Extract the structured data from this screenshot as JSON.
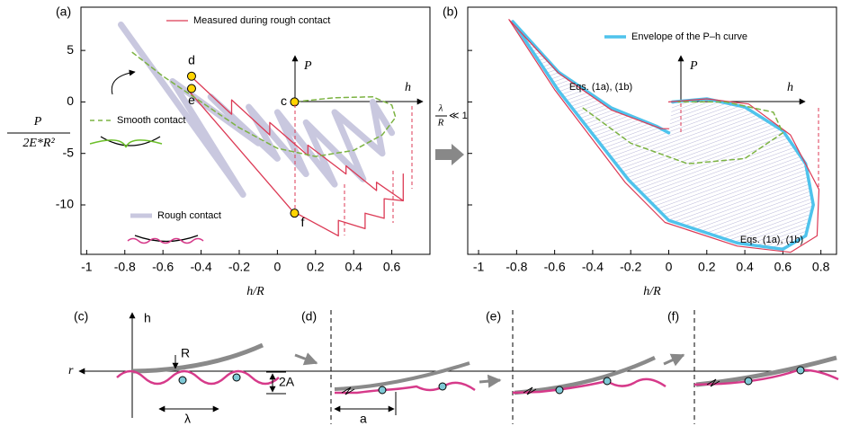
{
  "chart_data": [
    {
      "type": "line",
      "panel_label": "(a)",
      "x_label": "h/R",
      "y_label": {
        "numerator": "P",
        "denominator": "2E*R²"
      },
      "xlim": [
        -1.03,
        0.8
      ],
      "ylim": [
        -14.8,
        9.2
      ],
      "xticks": [
        -1,
        -0.8,
        -0.6,
        -0.4,
        -0.2,
        0,
        0.2,
        0.4,
        0.6
      ],
      "yticks": [
        5,
        0,
        -5,
        -10
      ],
      "inset_axes": {
        "y": "P",
        "x": "h"
      },
      "ratio_label": {
        "numerator": "λ",
        "denominator": "R",
        "relation": "≪ 1"
      },
      "series": [
        {
          "name": "Rough contact",
          "color": "#c9c8df",
          "width": 7,
          "x": [
            -0.82,
            -0.18,
            -0.55,
            -0.1,
            -0.35,
            0.0,
            -0.15,
            0.15,
            0.0,
            0.3,
            0.15,
            0.45,
            0.3,
            0.55,
            0.5,
            0.6
          ],
          "values": [
            7.5,
            -9,
            2,
            -4,
            0.5,
            -5.5,
            -0.5,
            -7,
            -1,
            -8,
            -2,
            -7.5,
            -1,
            -5,
            0,
            -3
          ]
        },
        {
          "name": "Measured during rough contact",
          "color": "#dc3a55",
          "width": 1.3,
          "x": [
            -0.46,
            -0.24,
            -0.24,
            -0.04,
            -0.04,
            0.16,
            0.16,
            0.36,
            0.36,
            0.52,
            0.52,
            0.66,
            0.66,
            null,
            -0.47,
            0.08,
            0.32,
            0.32,
            0.46,
            0.46,
            0.56,
            0.56,
            0.66
          ],
          "values": [
            2.6,
            -1.2,
            0.2,
            -3.2,
            -2.0,
            -5.2,
            -4.2,
            -7.0,
            -6.2,
            -8.6,
            -7.8,
            -9.6,
            -7,
            null,
            1.2,
            -10.6,
            -13.0,
            -11.5,
            -12.3,
            -10.8,
            -11.3,
            -9.4,
            -9.6
          ]
        },
        {
          "name": "Smooth contact",
          "color": "#7cb342",
          "width": 1.5,
          "dashed": true,
          "x": [
            -0.76,
            -0.6,
            -0.4,
            -0.2,
            0,
            0.2,
            0.4,
            0.55,
            0.62,
            0.6,
            0.5,
            0.3,
            0.08
          ],
          "values": [
            4.8,
            2.5,
            0,
            -2.5,
            -4.5,
            -5.3,
            -4.7,
            -3.2,
            -1.5,
            -0.3,
            0.5,
            0.4,
            0
          ]
        }
      ],
      "points": {
        "labels": [
          "d",
          "e",
          "c",
          "f"
        ],
        "x": [
          -0.45,
          -0.45,
          0.09,
          0.09
        ],
        "values": [
          2.5,
          1.3,
          0,
          -10.8
        ],
        "color": "#ffd400"
      }
    },
    {
      "type": "line",
      "panel_label": "(b)",
      "x_label": "h/R",
      "xlim": [
        -1.057,
        0.882
      ],
      "ylim": [
        -14.8,
        9.2
      ],
      "xticks": [
        -1,
        -0.8,
        -0.6,
        -0.4,
        -0.2,
        0,
        0.2,
        0.4,
        0.6,
        0.8
      ],
      "yticks": [
        5,
        0,
        -5,
        -10
      ],
      "ytick_labels": false,
      "inset_axes": {
        "y": "P",
        "x": "h"
      },
      "annotations": [
        "Eqs. (1a), (1b)",
        "Eqs. (1a), (1b)"
      ],
      "series": [
        {
          "name": "Envelope of the P–h curve",
          "color": "#4fc3ec",
          "width": 3.5,
          "hatch": "#b9b7d9",
          "x": [
            0.02,
            0.2,
            0.4,
            0.6,
            0.72,
            0.76,
            0.72,
            0.6,
            0.36,
            0.0,
            -0.21,
            -0.58,
            -0.82,
            -0.58,
            -0.3,
            -0.06,
            0.0
          ],
          "values": [
            0,
            0.3,
            -0.5,
            -2.8,
            -6,
            -10,
            -13,
            -14.3,
            -13.7,
            -11.5,
            -7.6,
            1.1,
            7.8,
            2.9,
            -0.6,
            -2.4,
            -3.0
          ]
        },
        {
          "color": "#dc3a55",
          "width": 1.2,
          "x": [
            -0.84,
            -0.58,
            -0.3,
            -0.04,
            0.0,
            null,
            0.0,
            0.2,
            0.42,
            0.64,
            0.79,
            0.78,
            0.64,
            0.36,
            -0.02,
            -0.23,
            -0.6,
            -0.84
          ],
          "values": [
            8.0,
            2.8,
            -0.8,
            -2.6,
            -2.6,
            null,
            0,
            0.3,
            -0.2,
            -3.2,
            -8.5,
            -13,
            -14.6,
            -14.0,
            -11.7,
            -7.8,
            1.2,
            8.0
          ]
        },
        {
          "color": "#7cb342",
          "width": 1.5,
          "dashed": true,
          "x": [
            -0.45,
            -0.2,
            0.1,
            0.4,
            0.6,
            0.55,
            0.3,
            0.05
          ],
          "values": [
            -0.6,
            -4,
            -6,
            -5.5,
            -3,
            -1,
            0,
            0
          ]
        }
      ]
    }
  ],
  "diagram": {
    "c": {
      "label": "(c)",
      "h": "h",
      "r": "r",
      "R": "R",
      "amplitude": "2A",
      "wavelength": "λ"
    },
    "d": {
      "label": "(d)",
      "a": "a"
    },
    "e": {
      "label": "(e)"
    },
    "f": {
      "label": "(f)"
    }
  }
}
